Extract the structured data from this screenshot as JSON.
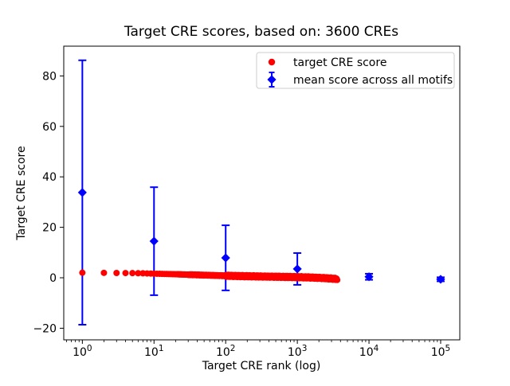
{
  "chart_data": {
    "type": "scatter",
    "title": "Target CRE scores, based on: 3600 CREs",
    "xlabel": "Target CRE rank (log)",
    "ylabel": "Target CRE score",
    "x_scale": "log",
    "xlim": [
      0.55,
      185000
    ],
    "ylim": [
      -24.6,
      91.8
    ],
    "y_ticks": [
      -20,
      0,
      20,
      40,
      60,
      80
    ],
    "x_ticks": [
      {
        "value": 1,
        "base": "10",
        "exp": "0"
      },
      {
        "value": 10,
        "base": "10",
        "exp": "1"
      },
      {
        "value": 100,
        "base": "10",
        "exp": "2"
      },
      {
        "value": 1000,
        "base": "10",
        "exp": "3"
      },
      {
        "value": 10000,
        "base": "10",
        "exp": "4"
      },
      {
        "value": 100000,
        "base": "10",
        "exp": "5"
      }
    ],
    "grid": false,
    "legend_position": "upper right",
    "series": [
      {
        "name": "target CRE score",
        "type": "scatter",
        "marker": "circle",
        "color": "#ff0000",
        "n_points": 3600,
        "rank_range": [
          1,
          3600
        ],
        "anchors_rank_score": [
          [
            1,
            2.0
          ],
          [
            2,
            1.95
          ],
          [
            3,
            1.9
          ],
          [
            4,
            1.87
          ],
          [
            5,
            1.84
          ],
          [
            7,
            1.78
          ],
          [
            10,
            1.62
          ],
          [
            15,
            1.5
          ],
          [
            20,
            1.4
          ],
          [
            30,
            1.25
          ],
          [
            50,
            1.05
          ],
          [
            100,
            0.8
          ],
          [
            200,
            0.6
          ],
          [
            400,
            0.45
          ],
          [
            700,
            0.33
          ],
          [
            1000,
            0.25
          ],
          [
            1500,
            0.12
          ],
          [
            2200,
            -0.08
          ],
          [
            3000,
            -0.32
          ],
          [
            3600,
            -0.5
          ]
        ],
        "band_spread": 0.42
      },
      {
        "name": "mean score across all motifs",
        "type": "errorbar",
        "marker": "diamond",
        "color": "#0000ff",
        "x": [
          1,
          10,
          100,
          1000,
          10000,
          100000
        ],
        "y": [
          33.8,
          14.5,
          7.9,
          3.5,
          0.4,
          -0.6
        ],
        "yerr": [
          52.4,
          21.4,
          12.9,
          6.3,
          1.2,
          0.8
        ]
      }
    ]
  }
}
